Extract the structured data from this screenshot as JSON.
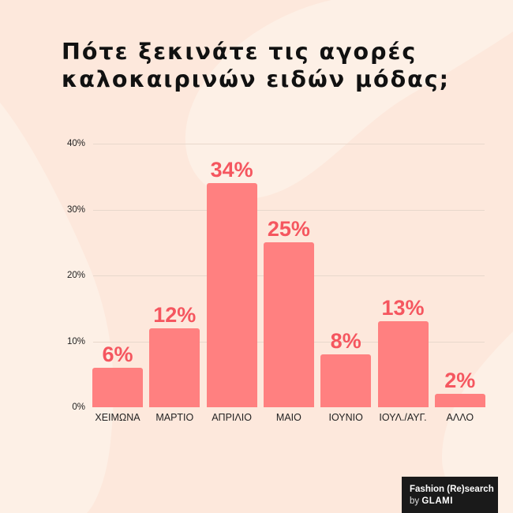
{
  "title": {
    "line1": "Πότε ξεκινάτε τις αγορές",
    "line2": "καλοκαιρινών ειδών μόδας;"
  },
  "colors": {
    "background": "#fdefe4",
    "bar": "#ff8080",
    "bar_label": "#f5565f",
    "gridline": "#e8d8cc",
    "title": "#111111",
    "brand_bg": "#1a1a1a"
  },
  "chart_data": {
    "type": "bar",
    "title": "Πότε ξεκινάτε τις αγορές καλοκαιρινών ειδών μόδας;",
    "xlabel": "",
    "ylabel": "",
    "categories": [
      "ΧΕΙΜΩΝΑ",
      "ΜΑΡΤΙΟ",
      "ΑΠΡΙΛΙΟ",
      "ΜΑΙΟ",
      "ΙΟΥΝΙΟ",
      "ΙΟΥΛ./ΑΥΓ.",
      "ΑΛΛΟ"
    ],
    "values": [
      6,
      12,
      34,
      25,
      8,
      13,
      2
    ],
    "data_labels": [
      "6%",
      "12%",
      "34%",
      "25%",
      "8%",
      "13%",
      "2%"
    ],
    "ylim": [
      0,
      40
    ],
    "yticks": [
      "0%",
      "10%",
      "20%",
      "30%",
      "40%"
    ],
    "ytick_values": [
      0,
      10,
      20,
      30,
      40
    ],
    "grid": true,
    "legend": null
  },
  "brand": {
    "line1": "Fashion (Re)search",
    "by": "by",
    "name": "GLAMI"
  }
}
